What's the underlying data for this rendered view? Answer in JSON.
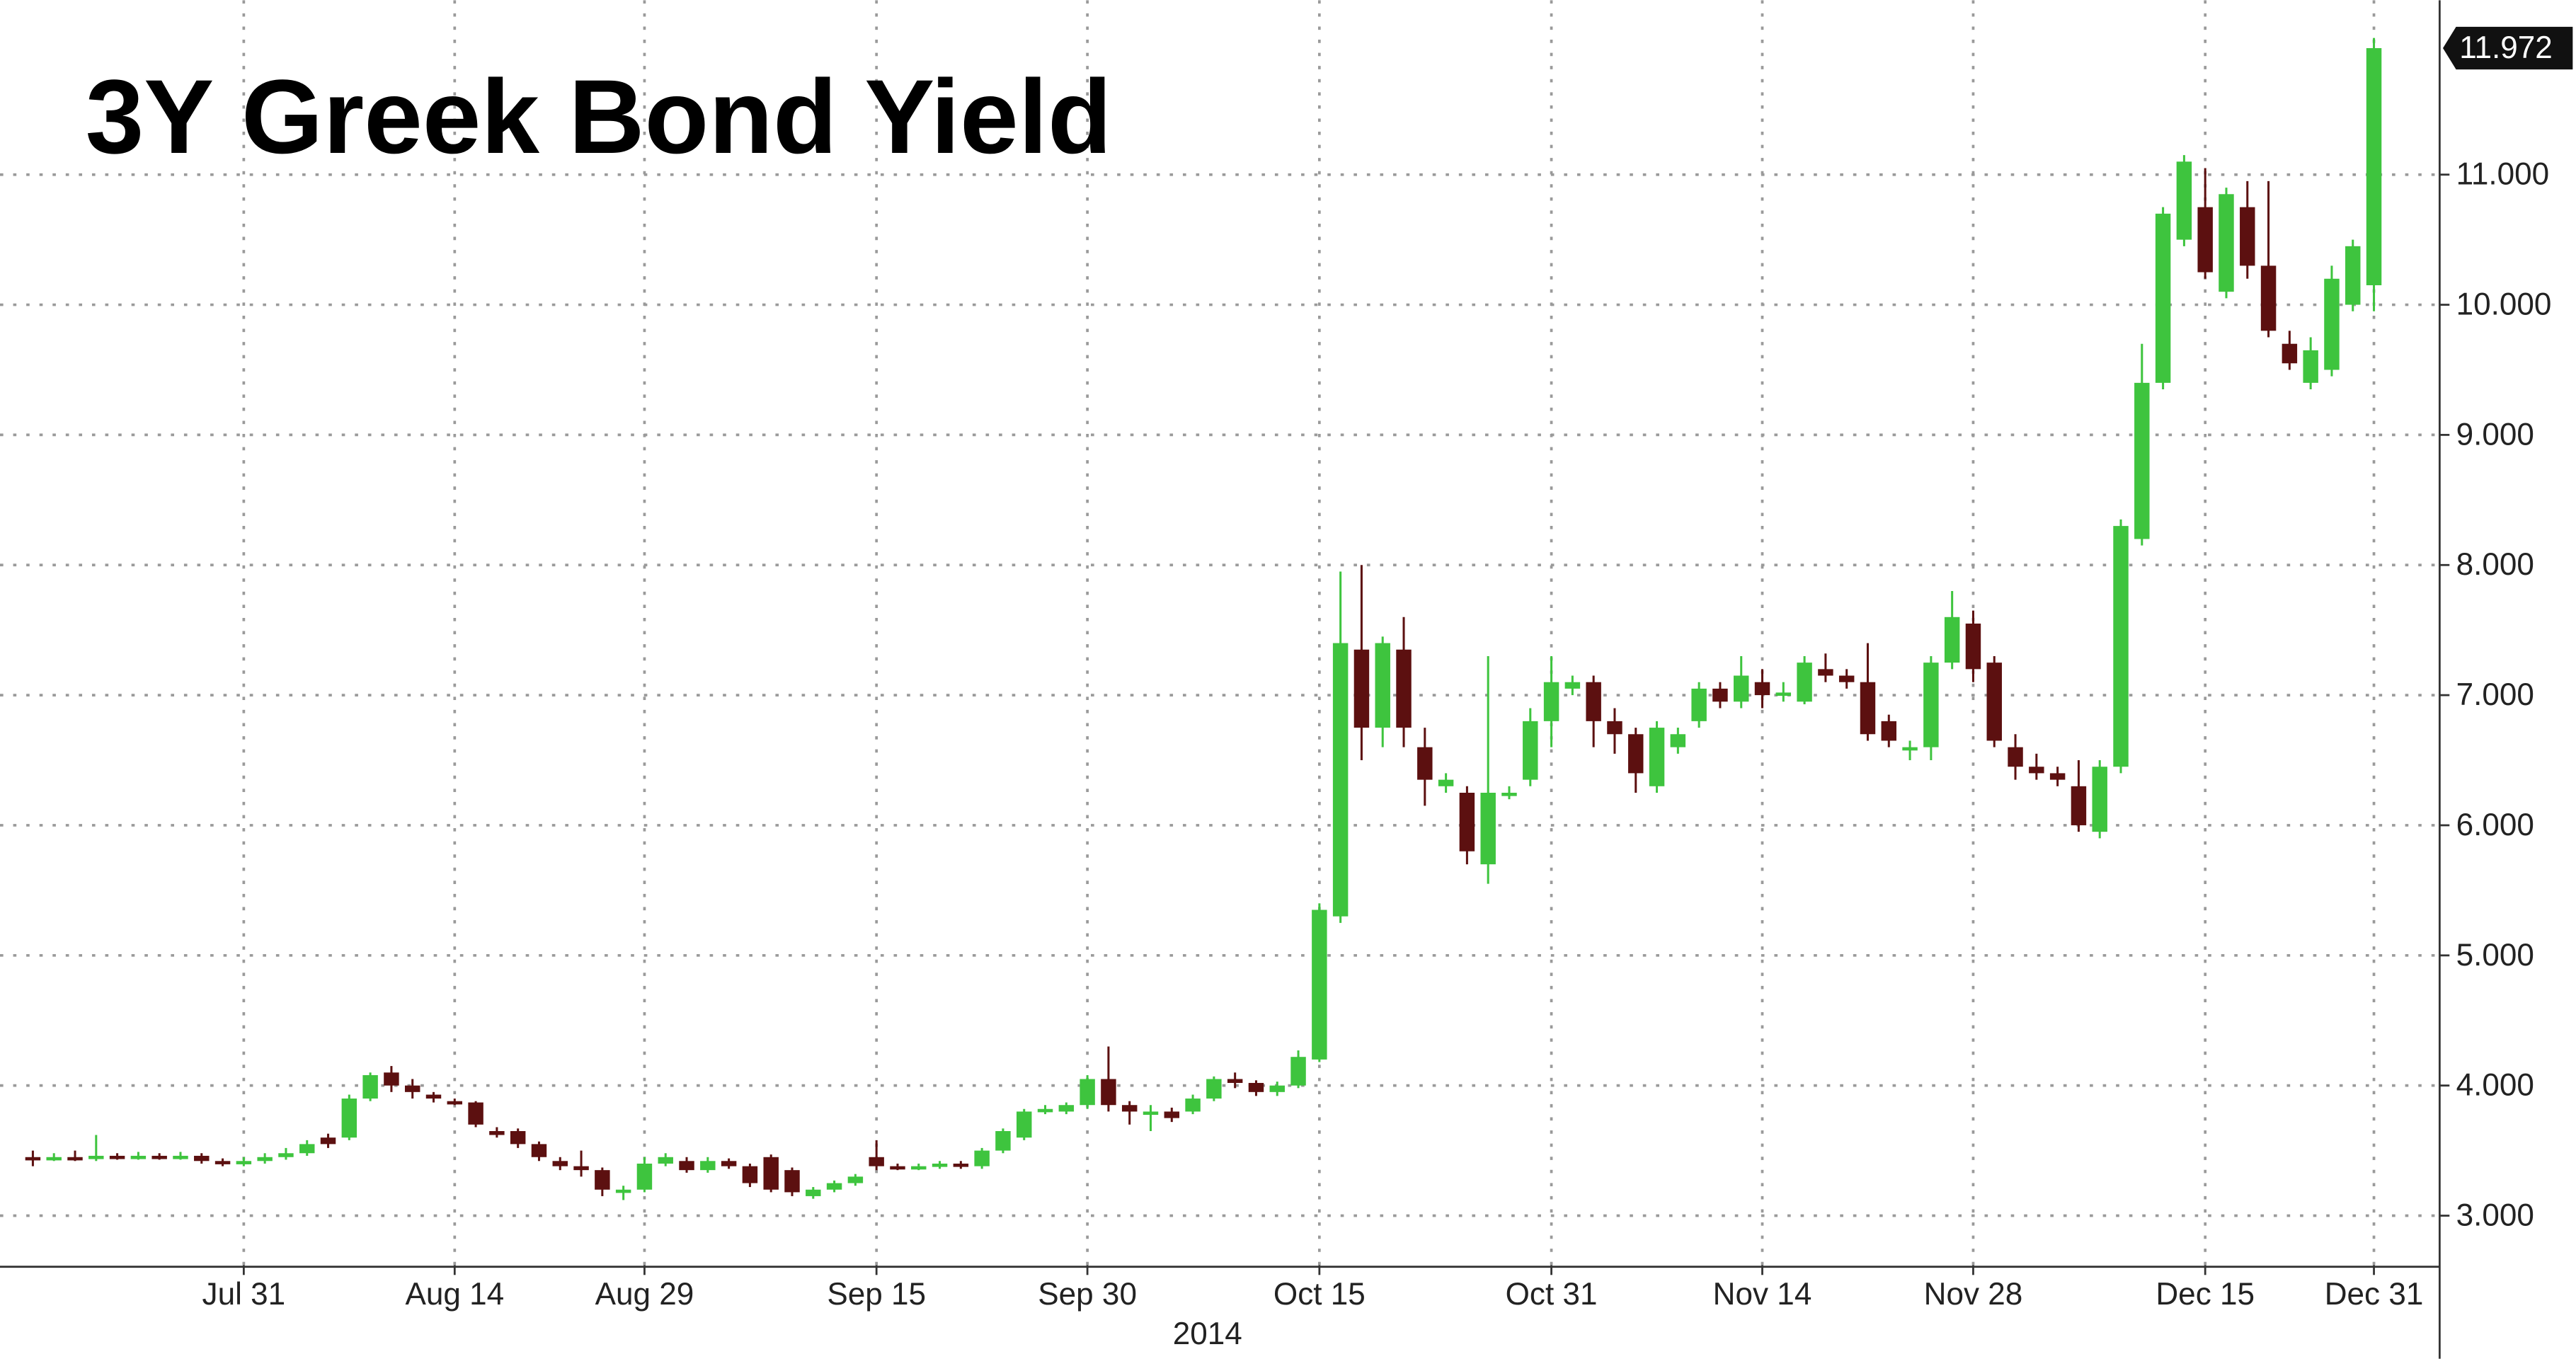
{
  "chart_data": {
    "type": "candlestick",
    "title": "3Y Greek Bond Yield",
    "xlabel": "2014",
    "categories": [
      null,
      null,
      null,
      null,
      null,
      null,
      null,
      null,
      null,
      null,
      "Jul 31",
      null,
      null,
      null,
      null,
      null,
      null,
      null,
      null,
      null,
      "Aug 14",
      null,
      null,
      null,
      null,
      null,
      null,
      null,
      null,
      "Aug 29",
      null,
      null,
      null,
      null,
      null,
      null,
      null,
      null,
      null,
      null,
      "Sep 15",
      null,
      null,
      null,
      null,
      null,
      null,
      null,
      null,
      null,
      "Sep 30",
      null,
      null,
      null,
      null,
      null,
      null,
      null,
      null,
      null,
      null,
      "Oct 15",
      null,
      null,
      null,
      null,
      null,
      null,
      null,
      null,
      null,
      null,
      "Oct 31",
      null,
      null,
      null,
      null,
      null,
      null,
      null,
      null,
      null,
      "Nov 14",
      null,
      null,
      null,
      null,
      null,
      null,
      null,
      null,
      null,
      "Nov 28",
      null,
      null,
      null,
      null,
      null,
      null,
      null,
      null,
      null,
      null,
      "Dec 15",
      null,
      null,
      null,
      null,
      null,
      null,
      null,
      "Dec 31"
    ],
    "open": [
      3.45,
      3.44,
      3.45,
      3.44,
      3.46,
      3.45,
      3.46,
      3.45,
      3.46,
      3.42,
      3.4,
      3.42,
      3.45,
      3.48,
      3.6,
      3.6,
      3.9,
      4.1,
      4.0,
      3.93,
      3.88,
      3.87,
      3.65,
      3.65,
      3.55,
      3.42,
      3.38,
      3.35,
      3.2,
      3.2,
      3.4,
      3.42,
      3.35,
      3.42,
      3.38,
      3.45,
      3.35,
      3.15,
      3.2,
      3.25,
      3.45,
      3.38,
      3.37,
      3.38,
      3.4,
      3.38,
      3.5,
      3.6,
      3.8,
      3.8,
      3.85,
      4.05,
      3.85,
      3.8,
      3.8,
      3.8,
      3.9,
      4.05,
      4.02,
      3.95,
      4.0,
      4.2,
      5.3,
      7.35,
      6.75,
      7.35,
      6.6,
      6.3,
      6.25,
      5.7,
      6.25,
      6.35,
      6.8,
      7.05,
      7.1,
      6.8,
      6.7,
      6.3,
      6.6,
      6.8,
      7.05,
      6.95,
      7.1,
      7.0,
      6.95,
      7.2,
      7.15,
      7.1,
      6.8,
      6.6,
      6.6,
      7.25,
      7.55,
      7.25,
      6.6,
      6.45,
      6.4,
      6.3,
      5.95,
      6.45,
      8.2,
      9.4,
      10.5,
      10.75,
      10.1,
      10.75,
      10.3,
      9.7,
      9.4,
      9.5,
      10.0,
      10.15
    ],
    "high": [
      3.5,
      3.48,
      3.5,
      3.62,
      3.48,
      3.49,
      3.48,
      3.49,
      3.48,
      3.44,
      3.45,
      3.48,
      3.52,
      3.58,
      3.63,
      3.93,
      4.1,
      4.15,
      4.05,
      3.95,
      3.9,
      3.88,
      3.68,
      3.67,
      3.57,
      3.45,
      3.5,
      3.37,
      3.23,
      3.45,
      3.48,
      3.45,
      3.45,
      3.44,
      3.4,
      3.47,
      3.37,
      3.22,
      3.27,
      3.32,
      3.58,
      3.4,
      3.4,
      3.42,
      3.42,
      3.52,
      3.67,
      3.82,
      3.85,
      3.87,
      4.08,
      4.3,
      3.88,
      3.85,
      3.83,
      3.93,
      4.07,
      4.1,
      4.04,
      4.03,
      4.27,
      5.4,
      7.95,
      8.0,
      7.45,
      7.6,
      6.75,
      6.4,
      6.3,
      7.3,
      6.3,
      6.9,
      7.3,
      7.15,
      7.15,
      6.9,
      6.75,
      6.8,
      6.75,
      7.1,
      7.1,
      7.3,
      7.2,
      7.1,
      7.3,
      7.32,
      7.2,
      7.4,
      6.85,
      6.65,
      7.3,
      7.8,
      7.65,
      7.3,
      6.7,
      6.55,
      6.45,
      6.5,
      6.5,
      8.35,
      9.7,
      10.75,
      11.15,
      11.05,
      10.9,
      10.95,
      10.95,
      9.8,
      9.75,
      10.3,
      10.5,
      12.05
    ],
    "low": [
      3.38,
      3.42,
      3.42,
      3.42,
      3.43,
      3.43,
      3.43,
      3.43,
      3.4,
      3.38,
      3.38,
      3.4,
      3.43,
      3.46,
      3.52,
      3.58,
      3.88,
      3.95,
      3.9,
      3.87,
      3.85,
      3.68,
      3.6,
      3.52,
      3.42,
      3.35,
      3.3,
      3.15,
      3.12,
      3.18,
      3.38,
      3.33,
      3.33,
      3.36,
      3.22,
      3.18,
      3.15,
      3.13,
      3.18,
      3.23,
      3.35,
      3.35,
      3.35,
      3.36,
      3.36,
      3.36,
      3.48,
      3.58,
      3.78,
      3.78,
      3.82,
      3.8,
      3.7,
      3.65,
      3.72,
      3.78,
      3.88,
      3.98,
      3.92,
      3.92,
      3.98,
      4.18,
      5.25,
      6.5,
      6.6,
      6.6,
      6.15,
      6.25,
      5.7,
      5.55,
      6.2,
      6.3,
      6.6,
      7.0,
      6.6,
      6.55,
      6.25,
      6.25,
      6.55,
      6.75,
      6.9,
      6.9,
      6.9,
      6.95,
      6.93,
      7.1,
      7.05,
      6.65,
      6.6,
      6.5,
      6.5,
      7.2,
      7.1,
      6.6,
      6.35,
      6.35,
      6.3,
      5.95,
      5.9,
      6.4,
      8.15,
      9.35,
      10.45,
      10.2,
      10.05,
      10.2,
      9.75,
      9.5,
      9.35,
      9.45,
      9.95,
      9.95
    ],
    "close": [
      3.43,
      3.45,
      3.44,
      3.46,
      3.45,
      3.46,
      3.45,
      3.46,
      3.42,
      3.4,
      3.42,
      3.45,
      3.48,
      3.55,
      3.55,
      3.9,
      4.08,
      4.0,
      3.95,
      3.9,
      3.87,
      3.7,
      3.62,
      3.55,
      3.45,
      3.38,
      3.35,
      3.2,
      3.2,
      3.4,
      3.45,
      3.35,
      3.42,
      3.38,
      3.25,
      3.2,
      3.18,
      3.2,
      3.25,
      3.3,
      3.38,
      3.37,
      3.38,
      3.4,
      3.38,
      3.5,
      3.65,
      3.8,
      3.82,
      3.85,
      4.05,
      3.85,
      3.8,
      3.8,
      3.75,
      3.9,
      4.05,
      4.02,
      3.95,
      4.0,
      4.22,
      5.35,
      7.4,
      6.75,
      7.4,
      6.75,
      6.35,
      6.35,
      5.8,
      6.25,
      6.25,
      6.8,
      7.1,
      7.1,
      6.8,
      6.7,
      6.4,
      6.75,
      6.7,
      7.05,
      6.95,
      7.15,
      7.0,
      7.02,
      7.25,
      7.15,
      7.1,
      6.7,
      6.65,
      6.6,
      7.25,
      7.6,
      7.2,
      6.65,
      6.45,
      6.4,
      6.35,
      6.0,
      6.45,
      8.3,
      9.4,
      10.7,
      11.1,
      10.25,
      10.85,
      10.3,
      9.8,
      9.55,
      9.65,
      10.2,
      10.45,
      11.972
    ],
    "up_color": "#3ec43e",
    "down_color": "#5c1010",
    "ylim": [
      2.62,
      12.34
    ],
    "yticks": [
      {
        "value": 3,
        "label": "3.000"
      },
      {
        "value": 4,
        "label": "4.000"
      },
      {
        "value": 5,
        "label": "5.000"
      },
      {
        "value": 6,
        "label": "6.000"
      },
      {
        "value": 7,
        "label": "7.000"
      },
      {
        "value": 8,
        "label": "8.000"
      },
      {
        "value": 9,
        "label": "9.000"
      },
      {
        "value": 10,
        "label": "10.000"
      },
      {
        "value": 11,
        "label": "11.000"
      }
    ],
    "grid": true
  }
}
